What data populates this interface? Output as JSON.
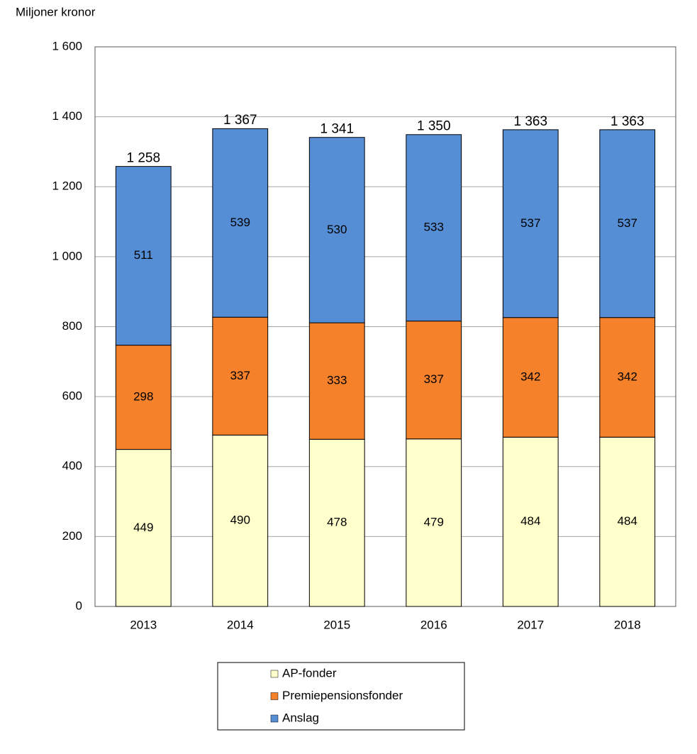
{
  "chart_data": {
    "type": "stacked_bar",
    "y_label": "Miljoner kronor",
    "categories": [
      "2013",
      "2014",
      "2015",
      "2016",
      "2017",
      "2018"
    ],
    "series": [
      {
        "name": "AP-fonder",
        "color": "#ffffcc",
        "values": [
          449,
          490,
          478,
          479,
          484,
          484
        ]
      },
      {
        "name": "Premiepensionsfonder",
        "color": "#f5812a",
        "values": [
          298,
          337,
          333,
          337,
          342,
          342
        ]
      },
      {
        "name": "Anslag",
        "color": "#558ed5",
        "values": [
          511,
          539,
          530,
          533,
          537,
          537
        ]
      }
    ],
    "totals": {
      "values": [
        1258,
        1367,
        1341,
        1350,
        1363,
        1363
      ],
      "value_labels": [
        "1 258",
        "1 367",
        "1 341",
        "1 350",
        "1 363",
        "1 363"
      ]
    },
    "ylim": [
      0,
      1600
    ],
    "yticks": [
      0,
      200,
      400,
      600,
      800,
      {
        "value": 1000,
        "label": "1 000"
      },
      {
        "value": 1200,
        "label": "1 200"
      },
      {
        "value": 1400,
        "label": "1 400"
      },
      {
        "value": 1600,
        "label": "1 600"
      }
    ],
    "grid": true,
    "legend": "bottom"
  }
}
